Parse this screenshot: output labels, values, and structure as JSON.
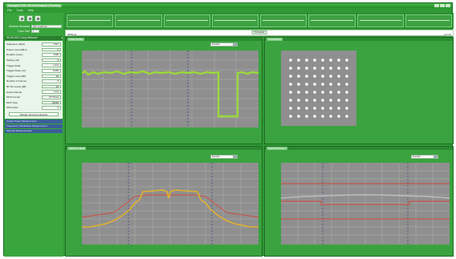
{
  "window": {
    "title": "Keysight EVM / WLAN Analyzer (Preview)"
  },
  "menu": [
    "File",
    "Tools",
    "Help"
  ],
  "left": {
    "toolbar_icons": [
      "open-icon",
      "save-icon",
      "settings-icon"
    ],
    "standard_label": "Wireless Standard",
    "standard_value": "802.11a/b/g/n",
    "trace_label": "Trace Size",
    "trace_value": "1",
    "panel_title": "WLAN 802.11a/g Measure",
    "params": [
      {
        "label": "Frequency (MHz)",
        "value": "2412"
      },
      {
        "label": "Power Level (dBm)",
        "value": "0"
      },
      {
        "label": "Duration (usec)",
        "value": "1000"
      },
      {
        "label": "Settling (us)",
        "value": "0"
      },
      {
        "label": "Trigger Mode",
        "value": "Level"
      },
      {
        "label": "Trigger Delay (ns)",
        "value": "0.000"
      },
      {
        "label": "Trigger Level (dB)",
        "value": "-20"
      },
      {
        "label": "Number of Frames",
        "value": "5"
      },
      {
        "label": "RF Rx Levels (dB)",
        "value": "20"
      },
      {
        "label": "Guard Interval",
        "value": "Long"
      },
      {
        "label": "MCS Format",
        "value": "HT Mixed"
      },
      {
        "label": "MCS Type",
        "value": "OFDM"
      },
      {
        "label": "MCS Index",
        "value": "0"
      }
    ],
    "display_button": "Display Summary Results",
    "sections": [
      "Output Power Measurement",
      "Frequency / Modulation Measurement",
      "Spectral Measurements"
    ]
  },
  "freq": {
    "left": "2408 Hz",
    "center": "Occupied",
    "right": "2.4 Hz"
  },
  "charts": {
    "power": {
      "title": "Power Profile",
      "dropdown": "Position"
    },
    "constellation": {
      "title": "Constellation"
    },
    "spectrum": {
      "title": "Spectrum Mask",
      "dropdown": "Domain"
    },
    "flatness": {
      "title": "Spectral Flatness",
      "dropdown": "Domain"
    }
  },
  "colors": {
    "trace_green": "#9bd93a",
    "trace_orange": "#e2b12d",
    "limit_red": "#d44a3a",
    "plot_bg": "#8f8f8f",
    "panel_green": "#3aa33f"
  }
}
